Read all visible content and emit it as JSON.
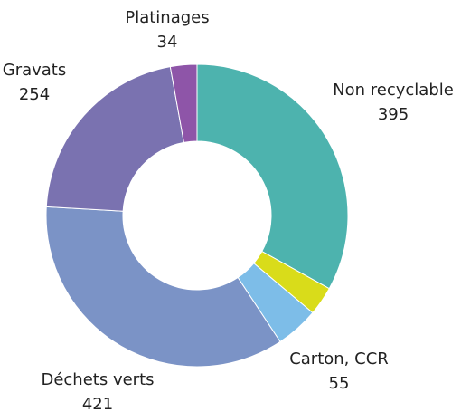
{
  "chart_data": {
    "type": "donut",
    "categories": [
      "Non recyclable",
      null,
      "Carton, CCR",
      "Déchets verts",
      "Gravats",
      "Platinages"
    ],
    "values": [
      395,
      37,
      55,
      421,
      254,
      34
    ],
    "colors": [
      "#4db3ae",
      "#d9dc1a",
      "#7dbde8",
      "#7b93c6",
      "#7a72b0",
      "#8e55a8"
    ]
  }
}
